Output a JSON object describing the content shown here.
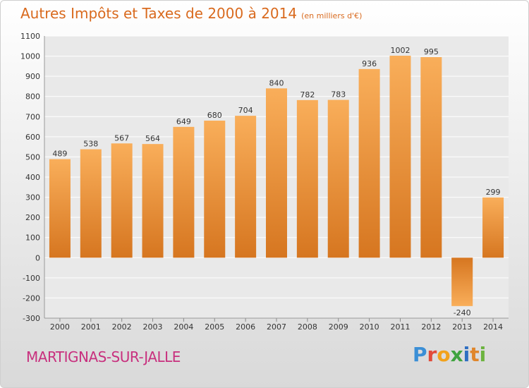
{
  "title": "Autres Impôts et Taxes de 2000 à 2014",
  "unit": "(en milliers d'€)",
  "commune": "MARTIGNAS-SUR-JALLE",
  "logo": "Proxiti",
  "colors": {
    "bar_light": "#f7a954",
    "bar_dark": "#d97a22",
    "title": "#d96a1e",
    "commune": "#c8307e"
  },
  "chart_data": {
    "type": "bar",
    "title": "Autres Impôts et Taxes de 2000 à 2014",
    "categories": [
      "2000",
      "2001",
      "2002",
      "2003",
      "2004",
      "2005",
      "2006",
      "2007",
      "2008",
      "2009",
      "2010",
      "2011",
      "2012",
      "2013",
      "2014"
    ],
    "values": [
      489,
      538,
      567,
      564,
      649,
      680,
      704,
      840,
      782,
      783,
      936,
      1002,
      995,
      -240,
      299
    ],
    "ylim": [
      -300,
      1100
    ],
    "yticks": [
      -300,
      -200,
      -100,
      0,
      100,
      200,
      300,
      400,
      500,
      600,
      700,
      800,
      900,
      1000,
      1100
    ],
    "grid": true,
    "xlabel": "",
    "ylabel": ""
  }
}
